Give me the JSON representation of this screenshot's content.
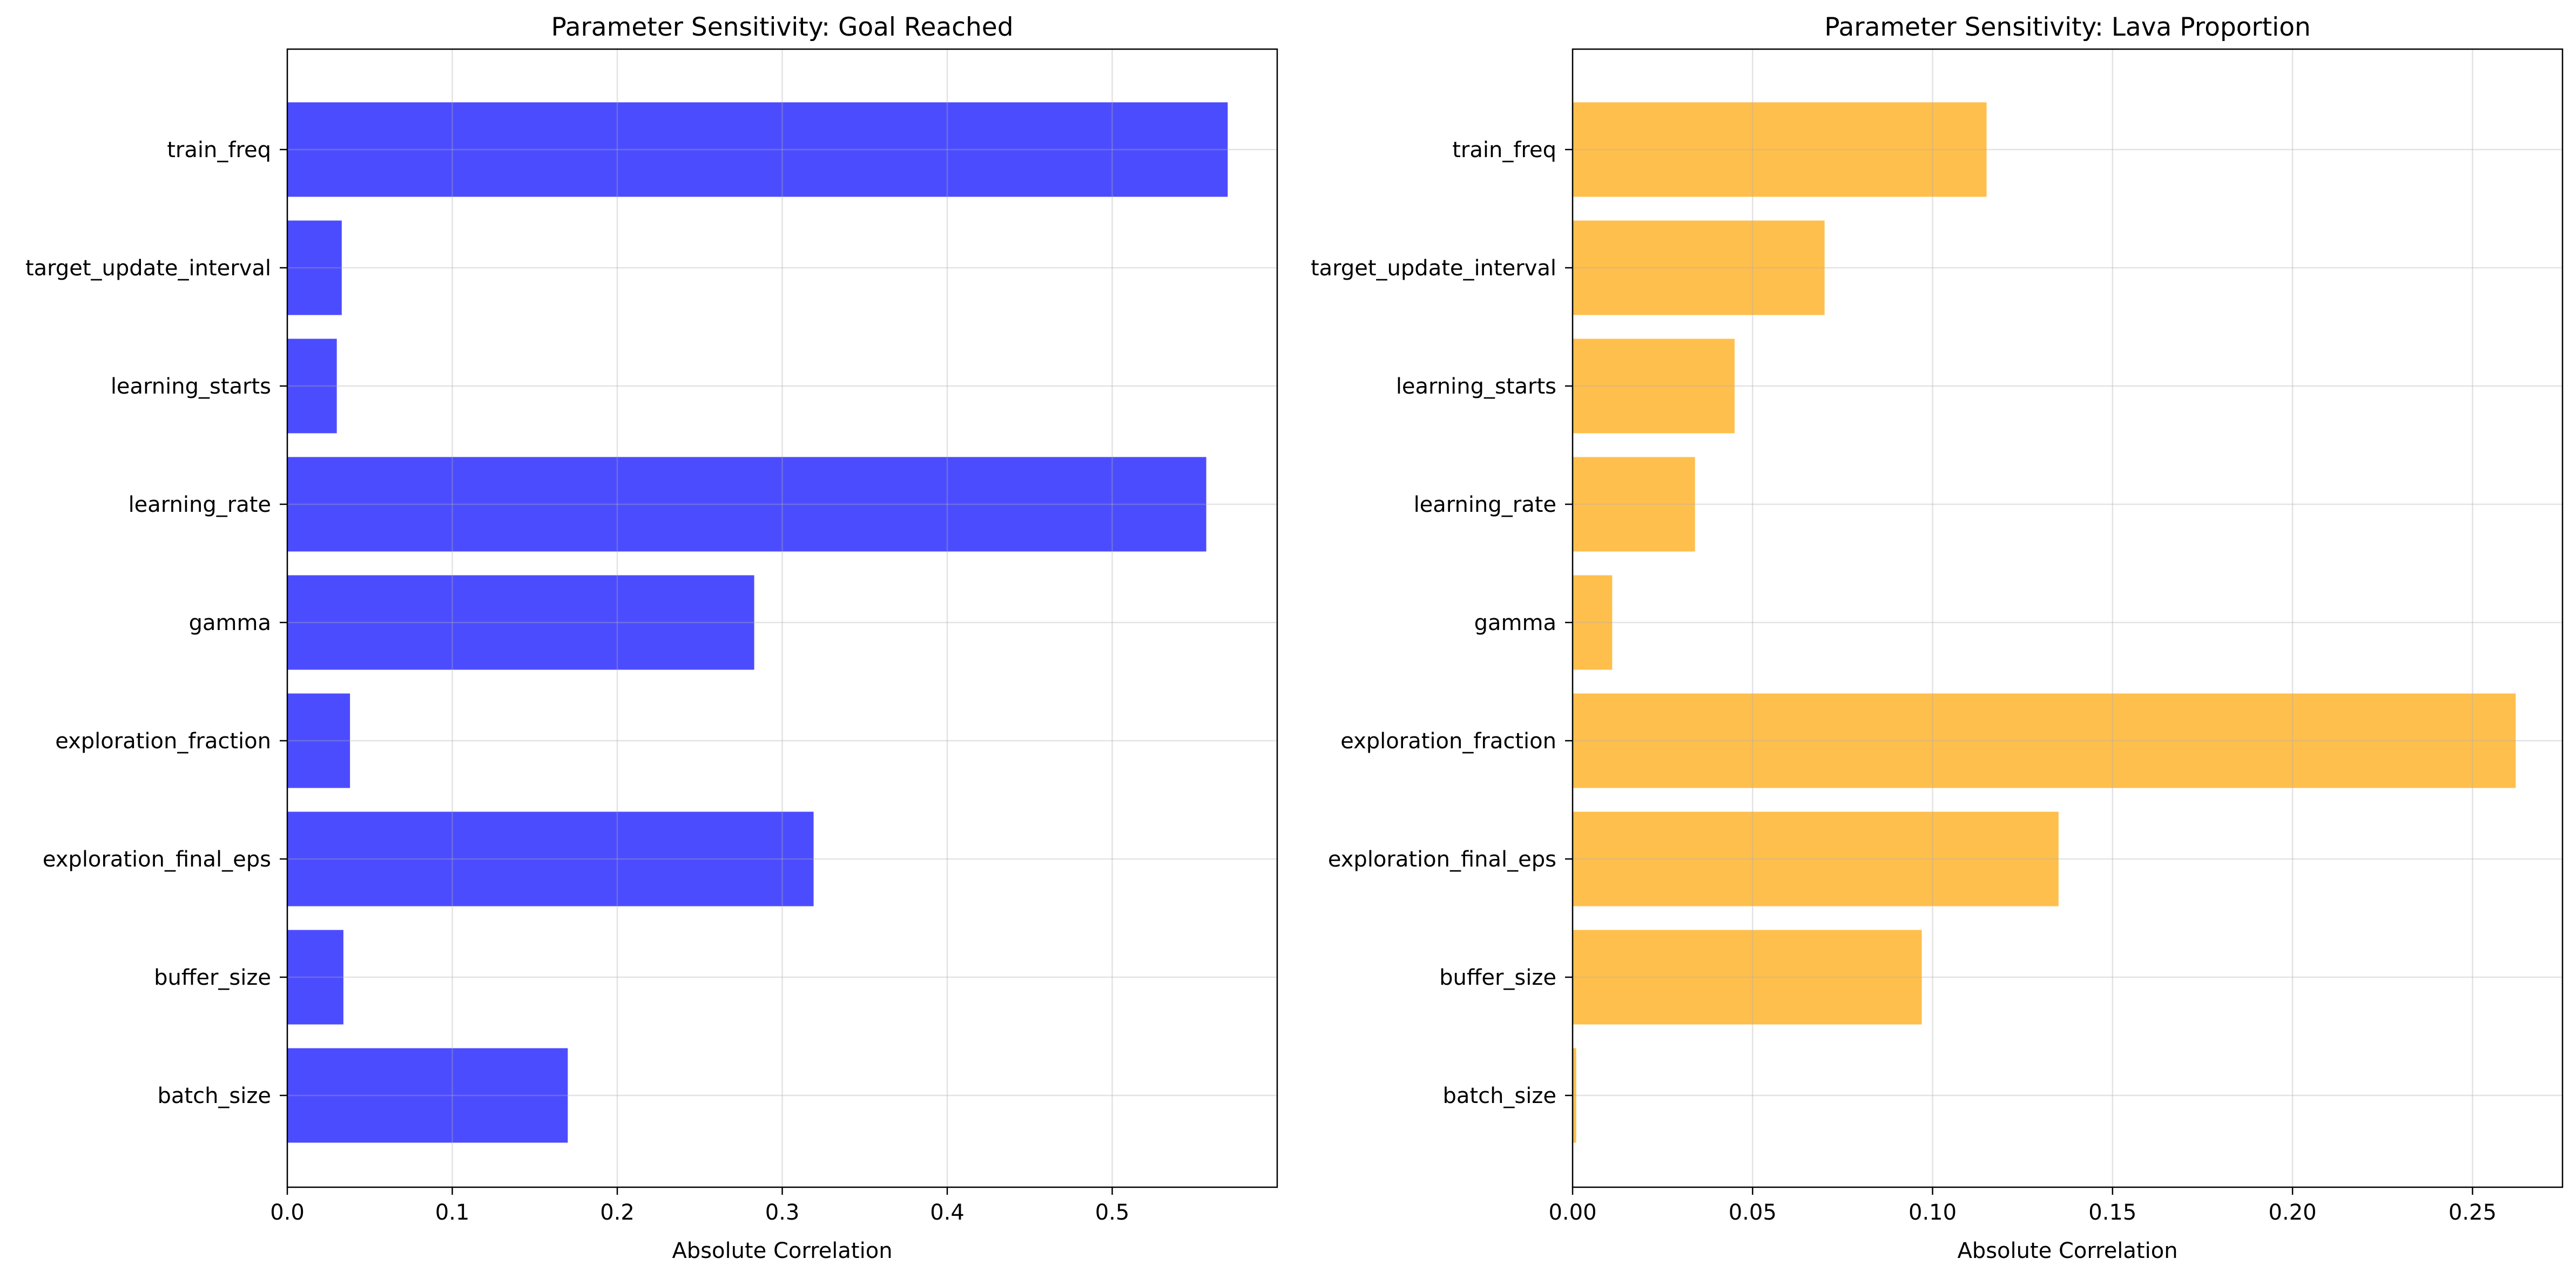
{
  "chart_data": [
    {
      "type": "bar",
      "orientation": "horizontal",
      "title": "Parameter Sensitivity: Goal Reached",
      "xlabel": "Absolute Correlation",
      "ylabel": "",
      "xlim": [
        0,
        0.6
      ],
      "xticks": [
        "0.0",
        "0.1",
        "0.2",
        "0.3",
        "0.4",
        "0.5"
      ],
      "grid": true,
      "color": "#4c4cff",
      "categories": [
        "train_freq",
        "target_update_interval",
        "learning_starts",
        "learning_rate",
        "gamma",
        "exploration_fraction",
        "exploration_final_eps",
        "buffer_size",
        "batch_size"
      ],
      "values": [
        0.57,
        0.033,
        0.03,
        0.557,
        0.283,
        0.038,
        0.319,
        0.034,
        0.17
      ]
    },
    {
      "type": "bar",
      "orientation": "horizontal",
      "title": "Parameter Sensitivity: Lava Proportion",
      "xlabel": "Absolute Correlation",
      "ylabel": "",
      "xlim": [
        0,
        0.275
      ],
      "xticks": [
        "0.00",
        "0.05",
        "0.10",
        "0.15",
        "0.20",
        "0.25"
      ],
      "grid": true,
      "color": "#ffbf4c",
      "categories": [
        "train_freq",
        "target_update_interval",
        "learning_starts",
        "learning_rate",
        "gamma",
        "exploration_fraction",
        "exploration_final_eps",
        "buffer_size",
        "batch_size"
      ],
      "values": [
        0.115,
        0.07,
        0.045,
        0.034,
        0.011,
        0.262,
        0.135,
        0.097,
        0.001
      ]
    }
  ]
}
